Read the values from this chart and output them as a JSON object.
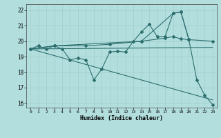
{
  "xlabel": "Humidex (Indice chaleur)",
  "background_color": "#b3dede",
  "grid_color": "#a0cdcd",
  "line_color": "#2d6e6e",
  "xlim": [
    -0.5,
    23.5
  ],
  "ylim": [
    15.7,
    22.4
  ],
  "yticks": [
    16,
    17,
    18,
    19,
    20,
    21,
    22
  ],
  "xticks": [
    0,
    1,
    2,
    3,
    4,
    5,
    6,
    7,
    8,
    9,
    10,
    11,
    12,
    13,
    14,
    15,
    16,
    17,
    18,
    19,
    20,
    21,
    22,
    23
  ],
  "s1x": [
    0,
    1,
    2,
    3,
    4,
    5,
    6,
    7,
    8,
    9,
    10,
    11,
    12,
    13,
    14,
    15,
    16,
    17,
    18,
    19,
    20,
    21,
    22,
    23
  ],
  "s1y": [
    19.5,
    19.7,
    19.5,
    19.7,
    19.5,
    18.8,
    18.9,
    18.8,
    17.5,
    18.2,
    19.3,
    19.35,
    19.3,
    20.0,
    20.6,
    21.1,
    20.3,
    20.3,
    21.8,
    21.9,
    20.1,
    17.5,
    16.5,
    15.9
  ],
  "s2x": [
    0,
    3,
    14,
    18,
    19,
    20
  ],
  "s2y": [
    19.5,
    19.7,
    20.0,
    21.8,
    21.9,
    20.1
  ],
  "s3x": [
    0,
    23
  ],
  "s3y": [
    19.5,
    19.6
  ],
  "s4x": [
    0,
    3,
    7,
    10,
    14,
    17,
    18,
    19,
    20,
    23
  ],
  "s4y": [
    19.5,
    19.7,
    19.7,
    19.8,
    20.0,
    20.2,
    20.3,
    20.15,
    20.1,
    20.0
  ],
  "s5x": [
    0,
    23
  ],
  "s5y": [
    19.5,
    16.2
  ]
}
